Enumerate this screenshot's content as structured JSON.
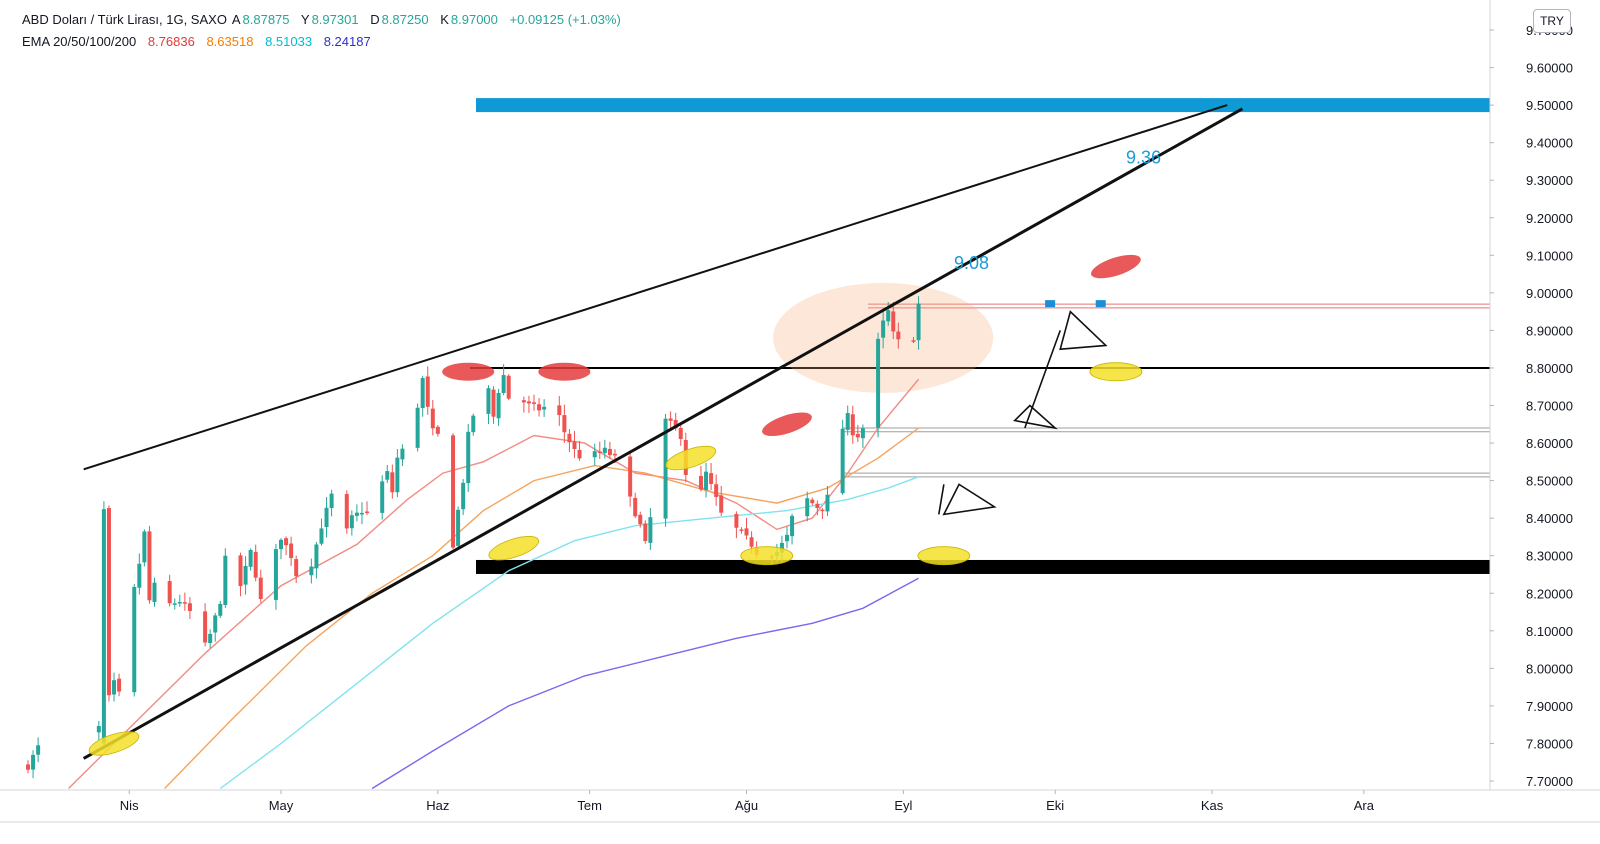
{
  "legend": {
    "symbol": "ABD Doları / Türk Lirası, 1G, SAXO",
    "o_label": "A",
    "o_value": "8.87875",
    "h_label": "Y",
    "h_value": "8.97301",
    "l_label": "D",
    "l_value": "8.87250",
    "c_label": "K",
    "c_value": "8.97000",
    "change": "+0.09125 (+1.03%)",
    "ema_label": "EMA 20/50/100/200",
    "ema20": "8.76836",
    "ema50": "8.63518",
    "ema100": "8.51033",
    "ema200": "8.24187"
  },
  "currency_button": "TRY",
  "colors": {
    "up": "#26a69a",
    "down": "#ef5350",
    "ema20": "#f28b82",
    "ema50": "#f7a35c",
    "ema100": "#7fe3f0",
    "ema200": "#7b68ee",
    "resistance": "#0f9ad6",
    "support": "#000000",
    "legend_red": "#e53935",
    "legend_orange": "#f57c00",
    "legend_cyan": "#00bcd4",
    "legend_blue": "#3030d0",
    "legend_green": "#26a69a"
  },
  "chart_data": {
    "type": "candlestick",
    "y_ticks": [
      "9.70000",
      "9.60000",
      "9.50000",
      "9.40000",
      "9.30000",
      "9.20000",
      "9.10000",
      "9.00000",
      "8.90000",
      "8.80000",
      "8.70000",
      "8.60000",
      "8.50000",
      "8.40000",
      "8.30000",
      "8.20000",
      "8.10000",
      "8.00000",
      "7.90000",
      "7.80000",
      "7.70000"
    ],
    "ylim": [
      7.68,
      9.72
    ],
    "x_ticks": [
      {
        "label": "Nis",
        "day": 20
      },
      {
        "label": "May",
        "day": 50
      },
      {
        "label": "Haz",
        "day": 81
      },
      {
        "label": "Tem",
        "day": 111
      },
      {
        "label": "Ağu",
        "day": 142
      },
      {
        "label": "Eyl",
        "day": 173
      },
      {
        "label": "Eki",
        "day": 203
      },
      {
        "label": "Kas",
        "day": 234
      },
      {
        "label": "Ara",
        "day": 264
      }
    ],
    "price_path": [
      [
        0,
        7.74
      ],
      [
        2,
        7.79
      ],
      [
        4,
        7.76
      ],
      [
        14,
        7.84
      ],
      [
        15,
        8.42
      ],
      [
        16,
        7.92
      ],
      [
        17,
        7.96
      ],
      [
        18,
        7.93
      ],
      [
        20,
        8.05
      ],
      [
        21,
        8.21
      ],
      [
        22,
        8.28
      ],
      [
        23,
        8.36
      ],
      [
        24,
        8.18
      ],
      [
        25,
        8.22
      ],
      [
        26,
        8.12
      ],
      [
        27,
        8.15
      ],
      [
        28,
        8.17
      ],
      [
        30,
        8.18
      ],
      [
        32,
        8.15
      ],
      [
        33,
        8.07
      ],
      [
        34,
        8.02
      ],
      [
        35,
        8.06
      ],
      [
        36,
        8.09
      ],
      [
        38,
        8.18
      ],
      [
        40,
        8.4
      ],
      [
        41,
        8.3
      ],
      [
        42,
        8.22
      ],
      [
        44,
        8.31
      ],
      [
        45,
        8.25
      ],
      [
        46,
        8.18
      ],
      [
        48,
        8.27
      ],
      [
        50,
        8.35
      ],
      [
        52,
        8.3
      ],
      [
        53,
        8.25
      ],
      [
        54,
        8.31
      ],
      [
        56,
        8.28
      ],
      [
        58,
        8.38
      ],
      [
        60,
        8.46
      ],
      [
        61,
        8.38
      ],
      [
        62,
        8.33
      ],
      [
        64,
        8.4
      ],
      [
        66,
        8.42
      ],
      [
        68,
        8.41
      ],
      [
        69,
        8.47
      ],
      [
        71,
        8.52
      ],
      [
        72,
        8.47
      ],
      [
        73,
        8.56
      ],
      [
        75,
        8.6
      ],
      [
        76,
        8.55
      ],
      [
        77,
        8.7
      ],
      [
        78,
        8.77
      ],
      [
        79,
        8.69
      ],
      [
        80,
        8.63
      ],
      [
        82,
        8.61
      ],
      [
        83,
        8.44
      ],
      [
        84,
        8.33
      ],
      [
        85,
        8.42
      ],
      [
        86,
        8.5
      ],
      [
        87,
        8.62
      ],
      [
        89,
        8.73
      ],
      [
        90,
        8.78
      ],
      [
        91,
        8.74
      ],
      [
        92,
        8.67
      ],
      [
        93,
        8.74
      ],
      [
        94,
        8.78
      ],
      [
        95,
        8.72
      ],
      [
        97,
        8.72
      ],
      [
        99,
        8.7
      ],
      [
        101,
        8.69
      ],
      [
        103,
        8.7
      ],
      [
        105,
        8.67
      ],
      [
        106,
        8.63
      ],
      [
        108,
        8.58
      ],
      [
        110,
        8.55
      ],
      [
        112,
        8.57
      ],
      [
        114,
        8.58
      ],
      [
        116,
        8.56
      ],
      [
        118,
        8.54
      ],
      [
        119,
        8.45
      ],
      [
        121,
        8.38
      ],
      [
        122,
        8.33
      ],
      [
        123,
        8.4
      ],
      [
        124,
        8.47
      ],
      [
        125,
        8.58
      ],
      [
        126,
        8.66
      ],
      [
        127,
        8.65
      ],
      [
        129,
        8.62
      ],
      [
        130,
        8.52
      ],
      [
        131,
        8.45
      ],
      [
        132,
        8.42
      ],
      [
        133,
        8.47
      ],
      [
        134,
        8.52
      ],
      [
        136,
        8.45
      ],
      [
        137,
        8.41
      ],
      [
        138,
        8.39
      ],
      [
        139,
        8.38
      ],
      [
        141,
        8.36
      ],
      [
        143,
        8.33
      ],
      [
        144,
        8.31
      ],
      [
        146,
        8.3
      ],
      [
        148,
        8.31
      ],
      [
        150,
        8.35
      ],
      [
        151,
        8.4
      ],
      [
        152,
        8.46
      ],
      [
        154,
        8.45
      ],
      [
        156,
        8.43
      ],
      [
        157,
        8.43
      ],
      [
        159,
        8.48
      ],
      [
        160,
        8.57
      ],
      [
        161,
        8.64
      ],
      [
        162,
        8.67
      ],
      [
        163,
        8.63
      ],
      [
        164,
        8.62
      ],
      [
        165,
        8.64
      ],
      [
        166,
        8.73
      ],
      [
        167,
        8.8
      ],
      [
        168,
        8.87
      ],
      [
        169,
        8.92
      ],
      [
        170,
        8.95
      ],
      [
        171,
        8.89
      ],
      [
        172,
        8.87
      ],
      [
        173,
        8.86
      ],
      [
        174,
        8.87
      ],
      [
        175,
        8.88
      ],
      [
        176,
        8.97
      ]
    ],
    "ema_series": [
      {
        "period": 20,
        "points": [
          [
            8,
            7.68
          ],
          [
            20,
            7.84
          ],
          [
            35,
            8.04
          ],
          [
            50,
            8.22
          ],
          [
            65,
            8.33
          ],
          [
            75,
            8.45
          ],
          [
            82,
            8.52
          ],
          [
            90,
            8.55
          ],
          [
            100,
            8.62
          ],
          [
            110,
            8.6
          ],
          [
            120,
            8.52
          ],
          [
            130,
            8.5
          ],
          [
            140,
            8.44
          ],
          [
            148,
            8.37
          ],
          [
            155,
            8.4
          ],
          [
            162,
            8.52
          ],
          [
            168,
            8.64
          ],
          [
            176,
            8.77
          ]
        ]
      },
      {
        "period": 50,
        "points": [
          [
            27,
            7.68
          ],
          [
            40,
            7.86
          ],
          [
            55,
            8.06
          ],
          [
            68,
            8.2
          ],
          [
            80,
            8.3
          ],
          [
            90,
            8.42
          ],
          [
            100,
            8.5
          ],
          [
            112,
            8.54
          ],
          [
            122,
            8.52
          ],
          [
            135,
            8.47
          ],
          [
            148,
            8.44
          ],
          [
            158,
            8.48
          ],
          [
            168,
            8.56
          ],
          [
            176,
            8.64
          ]
        ]
      },
      {
        "period": 100,
        "points": [
          [
            38,
            7.68
          ],
          [
            50,
            7.8
          ],
          [
            65,
            7.96
          ],
          [
            80,
            8.12
          ],
          [
            95,
            8.26
          ],
          [
            108,
            8.34
          ],
          [
            120,
            8.38
          ],
          [
            135,
            8.4
          ],
          [
            150,
            8.42
          ],
          [
            162,
            8.45
          ],
          [
            170,
            8.48
          ],
          [
            176,
            8.51
          ]
        ]
      },
      {
        "period": 200,
        "points": [
          [
            68,
            7.68
          ],
          [
            80,
            7.78
          ],
          [
            95,
            7.9
          ],
          [
            110,
            7.98
          ],
          [
            125,
            8.03
          ],
          [
            140,
            8.08
          ],
          [
            155,
            8.12
          ],
          [
            165,
            8.16
          ],
          [
            176,
            8.24
          ]
        ]
      }
    ],
    "levels": {
      "resistance": 9.5,
      "support": 8.27,
      "horizontal": 8.8,
      "thin_red": [
        8.97,
        8.96
      ],
      "thin_gray": [
        8.64,
        8.63,
        8.52,
        8.51
      ]
    },
    "trendlines": [
      {
        "from": [
          11,
          7.76
        ],
        "to": [
          240,
          9.49
        ]
      },
      {
        "from": [
          11,
          8.53
        ],
        "to": [
          237,
          9.5
        ]
      }
    ],
    "annotations": [
      {
        "text": "9.36",
        "day": 217,
        "price": 9.36
      },
      {
        "text": "9.08",
        "day": 183,
        "price": 9.08
      }
    ]
  }
}
